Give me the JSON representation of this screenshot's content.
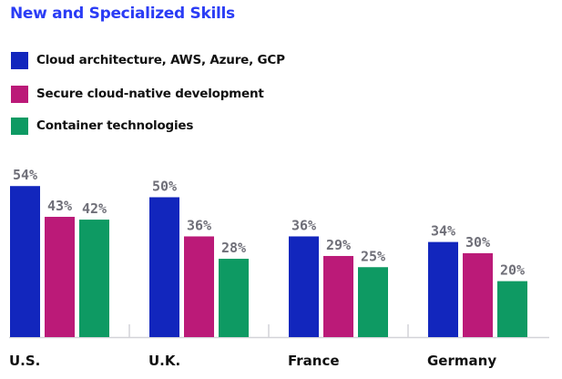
{
  "chart_data": {
    "type": "bar",
    "title": "New and Specialized Skills",
    "categories": [
      "U.S.",
      "U.K.",
      "France",
      "Germany"
    ],
    "series": [
      {
        "name": "Cloud architecture, AWS, Azure, GCP",
        "color": "#1226bd",
        "values": [
          54,
          50,
          36,
          34
        ]
      },
      {
        "name": "Secure cloud-native development",
        "color": "#bb1a78",
        "values": [
          43,
          36,
          29,
          30
        ]
      },
      {
        "name": "Container technologies",
        "color": "#0e9a63",
        "values": [
          42,
          28,
          25,
          20
        ]
      }
    ],
    "value_suffix": "%",
    "ylim": [
      0,
      60
    ],
    "legend_position": "top-left",
    "grid": false
  }
}
